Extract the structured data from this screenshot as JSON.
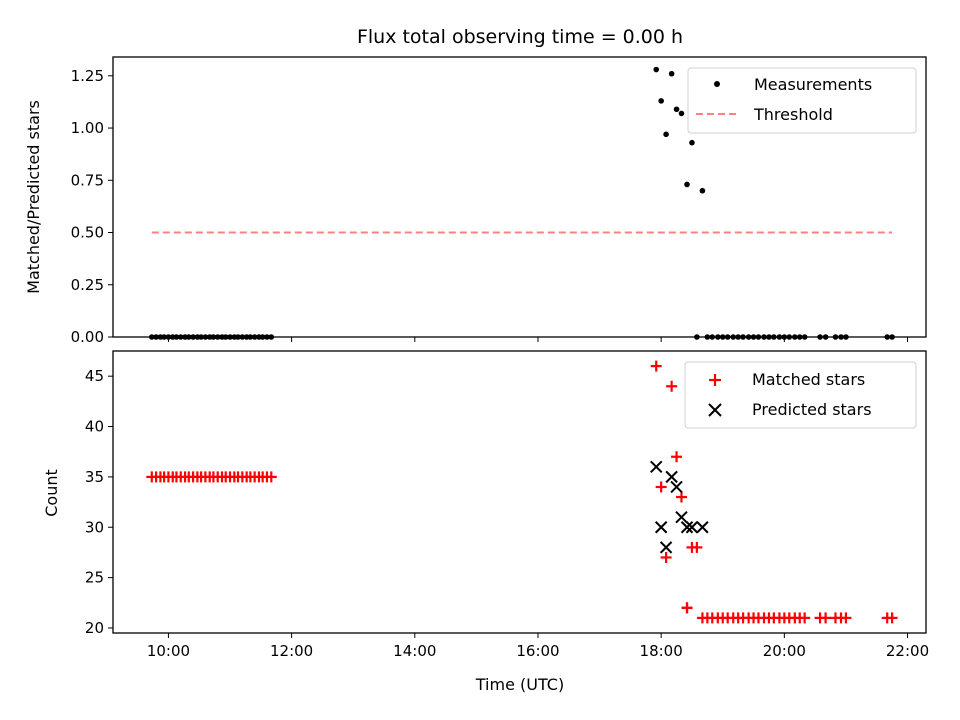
{
  "chart_data": [
    {
      "type": "scatter",
      "panel": "top",
      "title": "Flux total observing time = 0.00 h",
      "xlabel": "",
      "ylabel": "Matched/Predicted stars",
      "xlim": [
        9.1,
        22.3
      ],
      "ylim": [
        0.0,
        1.34
      ],
      "yticks": [
        0.0,
        0.25,
        0.5,
        0.75,
        1.0,
        1.25
      ],
      "ytick_labels": [
        "0.00",
        "0.25",
        "0.50",
        "0.75",
        "1.00",
        "1.25"
      ],
      "xticks": [
        10,
        12,
        14,
        16,
        18,
        20,
        22
      ],
      "legend_position": "top-right",
      "series": [
        {
          "name": "Measurements",
          "kind": "points",
          "color": "#000000",
          "x": [
            9.73,
            9.8,
            9.87,
            9.93,
            10.0,
            10.07,
            10.13,
            10.2,
            10.27,
            10.33,
            10.4,
            10.47,
            10.53,
            10.6,
            10.67,
            10.73,
            10.8,
            10.87,
            10.93,
            11.0,
            11.07,
            11.13,
            11.2,
            11.27,
            11.33,
            11.4,
            11.47,
            11.53,
            11.6,
            11.67,
            17.92,
            18.0,
            18.08,
            18.17,
            18.25,
            18.33,
            18.42,
            18.5,
            18.67,
            18.58,
            18.75,
            18.83,
            18.92,
            19.0,
            19.08,
            19.17,
            19.25,
            19.33,
            19.42,
            19.5,
            19.58,
            19.67,
            19.75,
            19.83,
            19.92,
            20.0,
            20.08,
            20.17,
            20.25,
            20.33,
            20.58,
            20.67,
            20.83,
            20.92,
            21.0,
            21.67,
            21.75
          ],
          "y": [
            0,
            0,
            0,
            0,
            0,
            0,
            0,
            0,
            0,
            0,
            0,
            0,
            0,
            0,
            0,
            0,
            0,
            0,
            0,
            0,
            0,
            0,
            0,
            0,
            0,
            0,
            0,
            0,
            0,
            0,
            1.28,
            1.13,
            0.97,
            1.26,
            1.09,
            1.07,
            0.73,
            0.93,
            0.7,
            0,
            0,
            0,
            0,
            0,
            0,
            0,
            0,
            0,
            0,
            0,
            0,
            0,
            0,
            0,
            0,
            0,
            0,
            0,
            0,
            0,
            0,
            0,
            0,
            0,
            0,
            0,
            0
          ]
        },
        {
          "name": "Threshold",
          "kind": "dashed-line",
          "color": "#ff8080",
          "x": [
            9.73,
            21.75
          ],
          "y": [
            0.5,
            0.5
          ]
        }
      ]
    },
    {
      "type": "scatter",
      "panel": "bottom",
      "title": "",
      "xlabel": "Time (UTC)",
      "ylabel": "Count",
      "xlim": [
        9.1,
        22.3
      ],
      "ylim": [
        19.5,
        47.5
      ],
      "yticks": [
        20,
        25,
        30,
        35,
        40,
        45
      ],
      "ytick_labels": [
        "20",
        "25",
        "30",
        "35",
        "40",
        "45"
      ],
      "xticks": [
        10,
        12,
        14,
        16,
        18,
        20,
        22
      ],
      "xtick_labels": [
        "10:00",
        "12:00",
        "14:00",
        "16:00",
        "18:00",
        "20:00",
        "22:00"
      ],
      "legend_position": "top-right",
      "series": [
        {
          "name": "Matched stars",
          "kind": "plus",
          "color": "#ff0000",
          "x": [
            9.73,
            9.8,
            9.87,
            9.93,
            10.0,
            10.07,
            10.13,
            10.2,
            10.27,
            10.33,
            10.4,
            10.47,
            10.53,
            10.6,
            10.67,
            10.73,
            10.8,
            10.87,
            10.93,
            11.0,
            11.07,
            11.13,
            11.2,
            11.27,
            11.33,
            11.4,
            11.47,
            11.53,
            11.6,
            11.67,
            17.92,
            18.0,
            18.08,
            18.17,
            18.25,
            18.33,
            18.42,
            18.5,
            18.58,
            18.42,
            18.67,
            18.75,
            18.83,
            18.92,
            19.0,
            19.08,
            19.17,
            19.25,
            19.33,
            19.42,
            19.5,
            19.58,
            19.67,
            19.75,
            19.83,
            19.92,
            20.0,
            20.08,
            20.17,
            20.25,
            20.33,
            20.58,
            20.67,
            20.83,
            20.92,
            21.0,
            21.67,
            21.75
          ],
          "y": [
            35,
            35,
            35,
            35,
            35,
            35,
            35,
            35,
            35,
            35,
            35,
            35,
            35,
            35,
            35,
            35,
            35,
            35,
            35,
            35,
            35,
            35,
            35,
            35,
            35,
            35,
            35,
            35,
            35,
            35,
            46,
            34,
            27,
            44,
            37,
            33,
            22,
            28,
            28,
            22,
            21,
            21,
            21,
            21,
            21,
            21,
            21,
            21,
            21,
            21,
            21,
            21,
            21,
            21,
            21,
            21,
            21,
            21,
            21,
            21,
            21,
            21,
            21,
            21,
            21,
            21,
            21,
            21
          ]
        },
        {
          "name": "Predicted stars",
          "kind": "x",
          "color": "#000000",
          "x": [
            17.92,
            18.0,
            18.08,
            18.17,
            18.25,
            18.33,
            18.42,
            18.5,
            18.67
          ],
          "y": [
            36,
            30,
            28,
            35,
            34,
            31,
            30,
            30,
            30
          ]
        }
      ]
    }
  ]
}
